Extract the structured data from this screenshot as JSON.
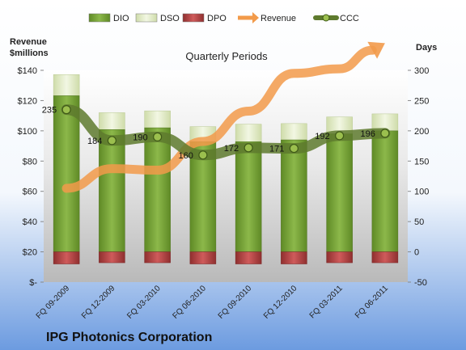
{
  "chart_data": {
    "type": "bar",
    "title": "IPG Photonics Corporation",
    "subtitle": "Quarterly Periods",
    "left_axis": {
      "title_line1": "Revenue",
      "title_line2": "$millions",
      "range": [
        0,
        140
      ],
      "ticks": [
        0,
        20,
        40,
        60,
        80,
        100,
        120,
        140
      ],
      "tick_labels": [
        "$-",
        "$20",
        "$40",
        "$60",
        "$80",
        "$100",
        "$120",
        "$140"
      ]
    },
    "right_axis": {
      "title": "Days",
      "range": [
        -50,
        300
      ],
      "ticks": [
        -50,
        0,
        50,
        100,
        150,
        200,
        250,
        300
      ],
      "tick_labels": [
        "-50",
        "0",
        "50",
        "100",
        "150",
        "200",
        "250",
        "300"
      ]
    },
    "categories": [
      "FQ 09-2009",
      "FQ 12-2009",
      "FQ 03-2010",
      "FQ 06-2010",
      "FQ 09-2010",
      "FQ 12-2010",
      "FQ 03-2011",
      "FQ 06-2011"
    ],
    "series": [
      {
        "name": "DIO",
        "type": "stacked-bar",
        "axis": "right",
        "color": "#7FA53A",
        "values": [
          258,
          202,
          205,
          182,
          182,
          185,
          195,
          200
        ]
      },
      {
        "name": "DSO",
        "type": "stacked-bar",
        "axis": "right",
        "color": "#E3EDC9",
        "values": [
          35,
          28,
          28,
          25,
          29,
          27,
          28,
          28
        ]
      },
      {
        "name": "DPO",
        "type": "negative-bar",
        "axis": "right",
        "color": "#B94848",
        "values": [
          -20,
          -18,
          -18,
          -20,
          -20,
          -20,
          -18,
          -18
        ]
      },
      {
        "name": "Revenue",
        "type": "arrow-line",
        "axis": "left",
        "color": "#F29A4A",
        "values": [
          62,
          75,
          74,
          93,
          113,
          138,
          141,
          158
        ]
      },
      {
        "name": "CCC",
        "type": "line",
        "axis": "right",
        "color": "#5E7A2E",
        "values": [
          235,
          184,
          190,
          160,
          172,
          171,
          192,
          196
        ],
        "data_labels": [
          "235",
          "184",
          "190",
          "160",
          "172",
          "171",
          "192",
          "196"
        ]
      }
    ],
    "legend": {
      "placement": "top",
      "items": [
        "DIO",
        "DSO",
        "DPO",
        "Revenue",
        "CCC"
      ]
    },
    "grid": false
  }
}
